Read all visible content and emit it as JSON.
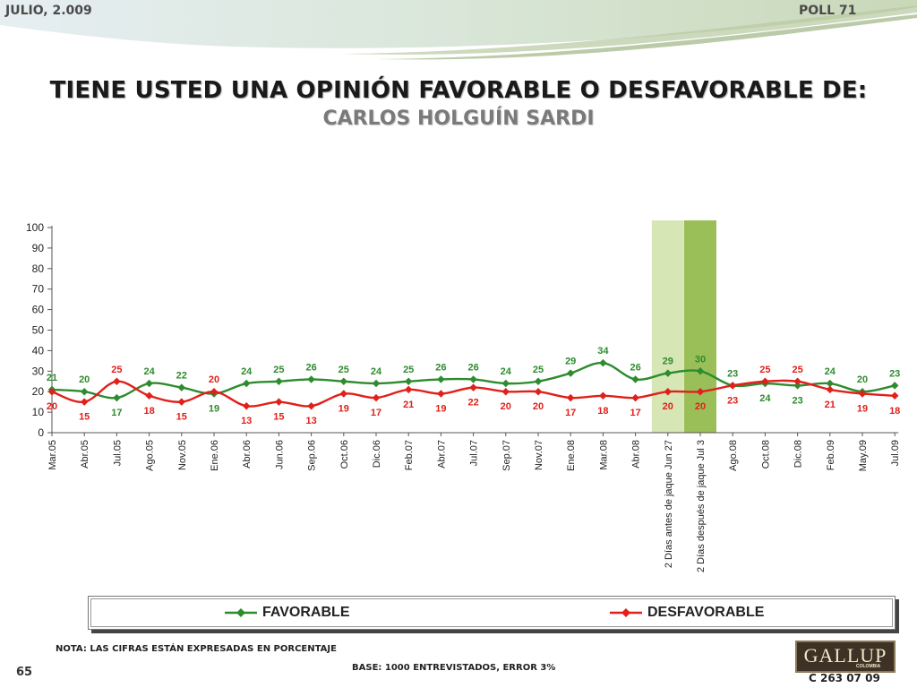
{
  "header": {
    "date": "JULIO, 2.009",
    "poll": "POLL 71"
  },
  "title": {
    "line1": "TIENE USTED UNA OPINIÓN FAVORABLE O DESFAVORABLE DE:",
    "line2": "CARLOS HOLGUÍN SARDI"
  },
  "chart_data": {
    "type": "line",
    "categories": [
      "Mar.05",
      "Abr.05",
      "Jul.05",
      "Ago.05",
      "Nov.05",
      "Ene.06",
      "Abr.06",
      "Jun.06",
      "Sep.06",
      "Oct.06",
      "Dic.06",
      "Feb.07",
      "Abr.07",
      "Jul.07",
      "Sep.07",
      "Nov.07",
      "Ene.08",
      "Mar.08",
      "Abr.08",
      "2 Días antes de jaque Jun 27",
      "2 Días después de jaque Jul 3",
      "Ago.08",
      "Oct.08",
      "Dic.08",
      "Feb.09",
      "May.09",
      "Jul.09"
    ],
    "series": [
      {
        "name": "FAVORABLE",
        "color": "#2e8b2e",
        "values": [
          21,
          20,
          17,
          24,
          22,
          19,
          24,
          25,
          26,
          25,
          24,
          25,
          26,
          26,
          24,
          25,
          29,
          34,
          26,
          29,
          30,
          23,
          24,
          23,
          24,
          20,
          23
        ]
      },
      {
        "name": "DESFAVORABLE",
        "color": "#e0201a",
        "values": [
          20,
          15,
          25,
          18,
          15,
          20,
          13,
          15,
          13,
          19,
          17,
          21,
          19,
          22,
          20,
          20,
          17,
          18,
          17,
          20,
          20,
          23,
          25,
          25,
          21,
          19,
          18
        ]
      }
    ],
    "ylim": [
      0,
      100
    ],
    "yticks": [
      0,
      10,
      20,
      30,
      40,
      50,
      60,
      70,
      80,
      90,
      100
    ],
    "highlighted_categories": [
      {
        "index": 19,
        "color": "#d6e6b4"
      },
      {
        "index": 20,
        "color": "#9bbf58"
      }
    ],
    "legend": {
      "position": "bottom"
    }
  },
  "legend": {
    "favorable": "FAVORABLE",
    "desfavorable": "DESFAVORABLE"
  },
  "footer": {
    "note": "NOTA: LAS CIFRAS ESTÁN EXPRESADAS EN PORCENTAJE",
    "base": "BASE: 1000 ENTREVISTADOS, ERROR 3%",
    "page": "65",
    "code": "C 263 07 09",
    "logo": "GALLUP",
    "logo_sub": "COLOMBIA"
  }
}
